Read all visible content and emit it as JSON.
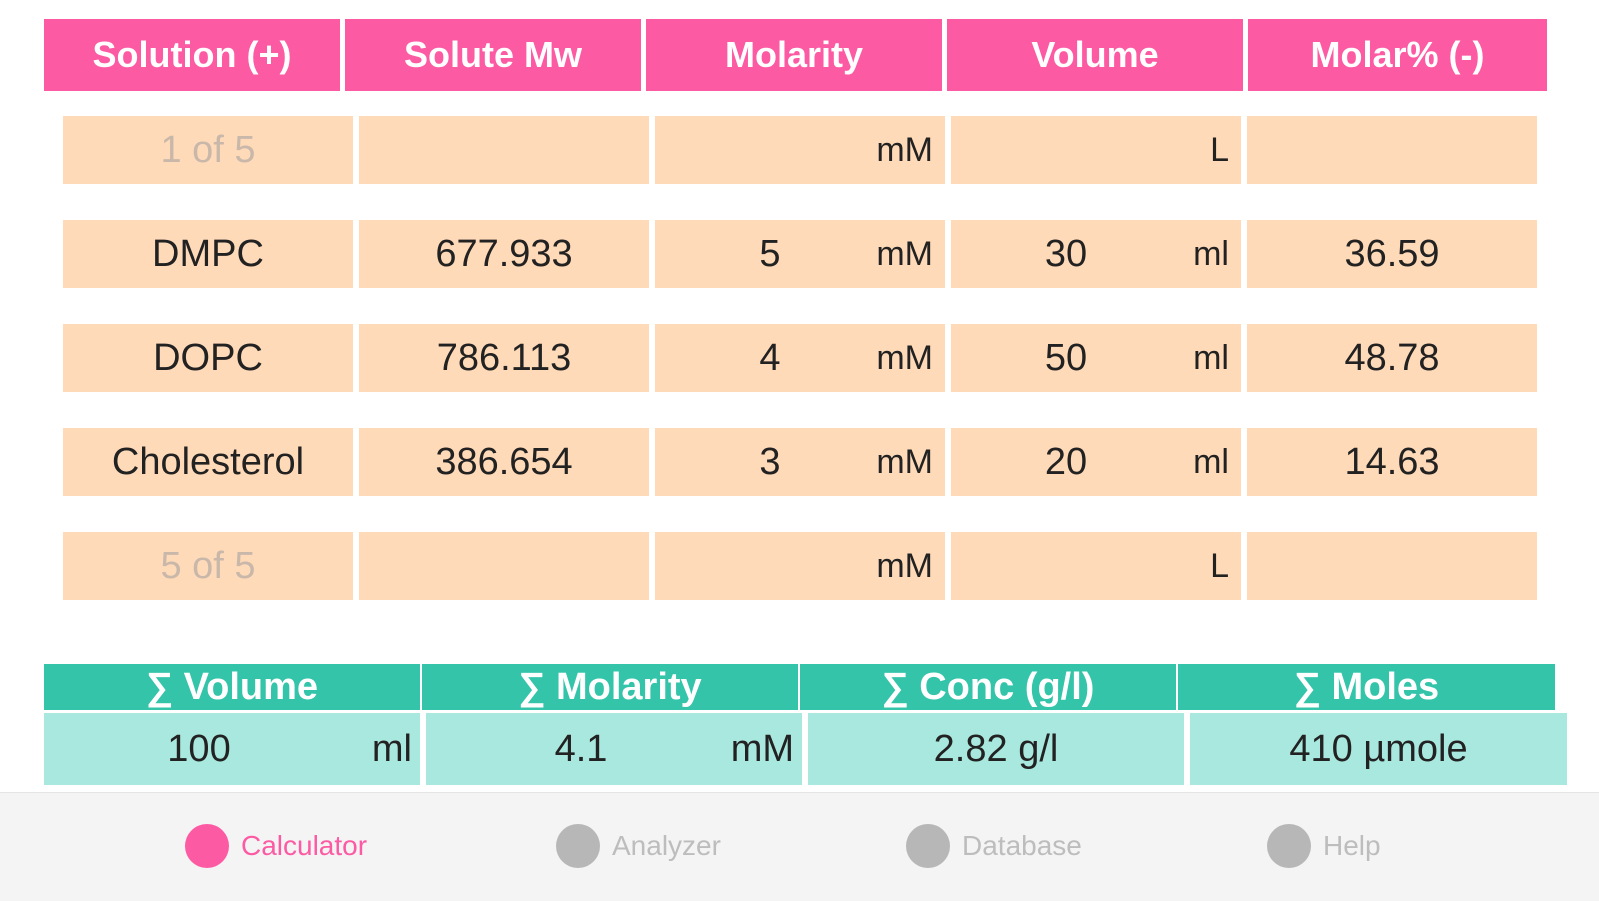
{
  "table": {
    "headers": [
      "Solution (+)",
      "Solute Mw",
      "Molarity",
      "Volume",
      "Molar% (-)"
    ],
    "rows": [
      {
        "name": "1 of 5",
        "placeholder": true,
        "mw": "",
        "molarity": "",
        "molarity_unit": "mM",
        "volume": "",
        "volume_unit": "L",
        "molar_pct": ""
      },
      {
        "name": "DMPC",
        "placeholder": false,
        "mw": "677.933",
        "molarity": "5",
        "molarity_unit": "mM",
        "volume": "30",
        "volume_unit": "ml",
        "molar_pct": "36.59"
      },
      {
        "name": "DOPC",
        "placeholder": false,
        "mw": "786.113",
        "molarity": "4",
        "molarity_unit": "mM",
        "volume": "50",
        "volume_unit": "ml",
        "molar_pct": "48.78"
      },
      {
        "name": "Cholesterol",
        "placeholder": false,
        "mw": "386.654",
        "molarity": "3",
        "molarity_unit": "mM",
        "volume": "20",
        "volume_unit": "ml",
        "molar_pct": "14.63"
      },
      {
        "name": "5 of 5",
        "placeholder": true,
        "mw": "",
        "molarity": "",
        "molarity_unit": "mM",
        "volume": "",
        "volume_unit": "L",
        "molar_pct": ""
      }
    ]
  },
  "summary": {
    "headers": [
      "∑ Volume",
      "∑ Molarity",
      "∑  Conc (g/l)",
      "∑ Moles"
    ],
    "volume": "100",
    "volume_unit": "ml",
    "molarity": "4.1",
    "molarity_unit": "mM",
    "conc": "2.82 g/l",
    "moles": "410 µmole"
  },
  "tabs": [
    {
      "label": "Calculator",
      "icon": "calculator-icon",
      "active": true
    },
    {
      "label": "Analyzer",
      "icon": "analyzer-icon",
      "active": false
    },
    {
      "label": "Database",
      "icon": "database-icon",
      "active": false
    },
    {
      "label": "Help",
      "icon": "help-icon",
      "active": false
    }
  ],
  "colors": {
    "header_pink": "#fd5aa4",
    "row_peach": "#ffdab8",
    "summary_header_teal": "#33c4aa",
    "summary_value_teal": "#a8e8de",
    "active_tab": "#fd5aa4"
  }
}
